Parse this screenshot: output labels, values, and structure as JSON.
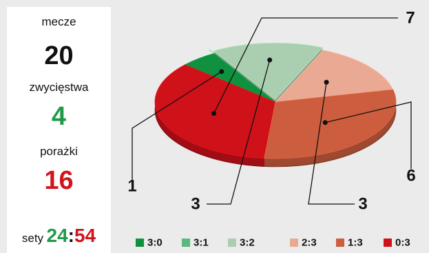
{
  "stats": {
    "matches_label": "mecze",
    "matches_value": "20",
    "wins_label": "zwycięstwa",
    "wins_value": "4",
    "losses_label": "porażki",
    "losses_value": "16",
    "sets_label": "sety",
    "sets_won": "24",
    "sets_separator": ":",
    "sets_lost": "54"
  },
  "colors": {
    "wins": "#1f9a48",
    "losses": "#d2141b",
    "text": "#111111",
    "background": "#ebebeb",
    "panel": "#ffffff"
  },
  "chart_data": {
    "type": "pie",
    "style": "3d exploded pie with callout labels",
    "categories": [
      "3:0",
      "3:1",
      "3:2",
      "2:3",
      "1:3",
      "0:3"
    ],
    "values": [
      1,
      0,
      3,
      3,
      6,
      7
    ],
    "colors": [
      "#10913f",
      "#5bb97b",
      "#aacfb0",
      "#eaa993",
      "#cc5d3e",
      "#cf1119"
    ],
    "legend_position": "bottom"
  }
}
